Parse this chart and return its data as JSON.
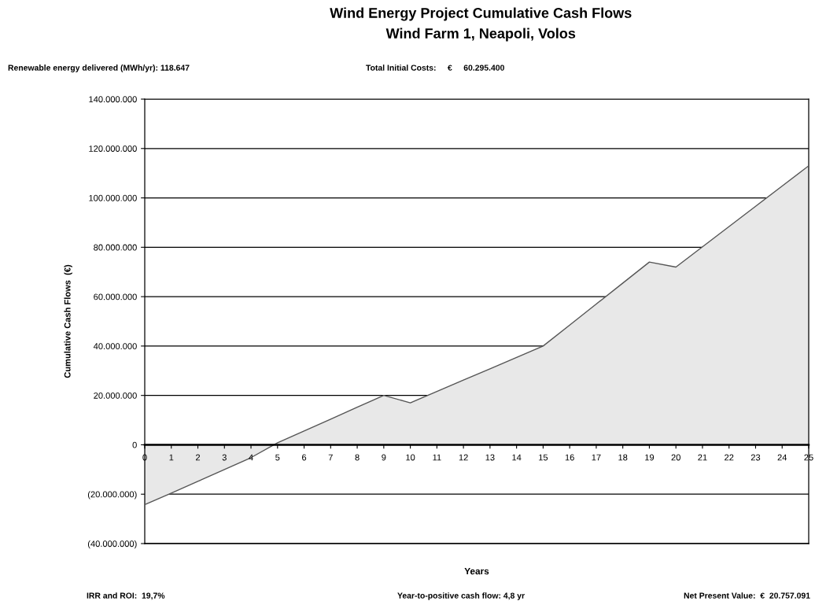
{
  "chart_data": {
    "type": "area",
    "title": "Wind Energy Project Cumulative Cash Flows",
    "subtitle": "Wind Farm 1, Neapoli, Volos",
    "xlabel": "Years",
    "ylabel": "Cumulative Cash Flows  (€)",
    "annotations": [
      "Renewable energy delivered (MWh/yr): 118.647",
      "Total Initial Costs:     €     60.295.400",
      "IRR and ROI:  19,7%",
      "Year-to-positive cash flow: 4,8 yr",
      "Net Present Value:  €  20.757.091"
    ],
    "categories": [
      "0",
      "1",
      "2",
      "3",
      "4",
      "5",
      "6",
      "7",
      "8",
      "9",
      "10",
      "11",
      "12",
      "13",
      "14",
      "15",
      "16",
      "17",
      "18",
      "19",
      "20",
      "21",
      "22",
      "23",
      "24",
      "25"
    ],
    "series": [
      {
        "color": "#e8e8e8",
        "values": [
          -24200000,
          -19600000,
          -14800000,
          -10000000,
          -5200000,
          800000,
          5600000,
          10400000,
          15200000,
          20000000,
          17000000,
          21600000,
          26200000,
          30800000,
          35400000,
          40000000,
          48500000,
          57000000,
          65500000,
          74000000,
          72000000,
          80200000,
          88400000,
          96600000,
          104800000,
          113000000
        ]
      }
    ],
    "ylim": [
      -40000000,
      140000000
    ],
    "yticks": [
      {
        "value": -40000000,
        "label": "(40.000.000)"
      },
      {
        "value": -20000000,
        "label": "(20.000.000)"
      },
      {
        "value": 0,
        "label": "0"
      },
      {
        "value": 20000000,
        "label": "20.000.000"
      },
      {
        "value": 40000000,
        "label": "40.000.000"
      },
      {
        "value": 60000000,
        "label": "60.000.000"
      },
      {
        "value": 80000000,
        "label": "80.000.000"
      },
      {
        "value": 100000000,
        "label": "100.000.000"
      },
      {
        "value": 120000000,
        "label": "120.000.000"
      },
      {
        "value": 140000000,
        "label": "140.000.000"
      }
    ],
    "grid": "y",
    "legend": false
  }
}
